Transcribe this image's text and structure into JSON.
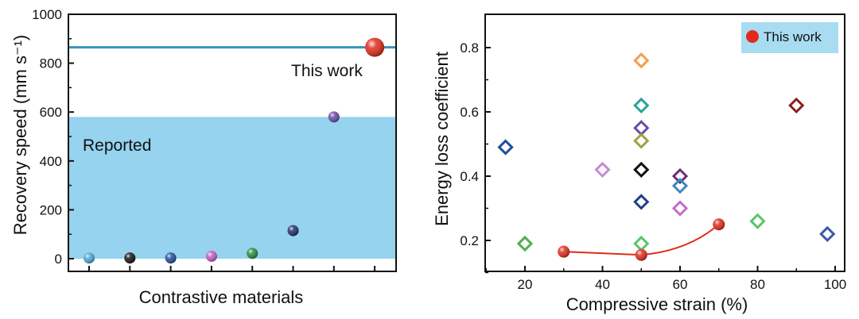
{
  "chart_data": [
    {
      "type": "scatter",
      "xlabel": "Contrastive materials",
      "ylabel": "Recovery speed (mm s⁻¹)",
      "ylim": [
        -50,
        1000
      ],
      "yticks": [
        "0",
        "200",
        "400",
        "600",
        "800",
        "1000"
      ],
      "grid": false,
      "reported_band": {
        "label": "Reported",
        "from": 0,
        "to": 580,
        "color": "#95d3ee"
      },
      "this_work_line": {
        "value": 865,
        "color": "#3a93b8"
      },
      "points": [
        {
          "x": 1,
          "y": 3,
          "color": "#4aa8d8"
        },
        {
          "x": 2,
          "y": 3,
          "color": "#111111"
        },
        {
          "x": 3,
          "y": 3,
          "color": "#1f4e9a"
        },
        {
          "x": 4,
          "y": 10,
          "color": "#c45bc2"
        },
        {
          "x": 5,
          "y": 22,
          "color": "#2a8a3a"
        },
        {
          "x": 6,
          "y": 115,
          "color": "#1f2a6e"
        },
        {
          "x": 7,
          "y": 580,
          "color": "#6a4aa8"
        }
      ],
      "this_work_point": {
        "x": 8,
        "y": 865,
        "color": "#e12a1a",
        "label": "This work"
      }
    },
    {
      "type": "scatter",
      "xlabel": "Compressive strain (%)",
      "ylabel": "Energy loss coefficient",
      "xlim": [
        10,
        100
      ],
      "ylim": [
        0.1,
        0.9
      ],
      "xticks": [
        "20",
        "40",
        "60",
        "80",
        "100"
      ],
      "yticks": [
        "0.2",
        "0.4",
        "0.6",
        "0.8"
      ],
      "grid": false,
      "legend": {
        "position": "top-right",
        "label": "This work",
        "color": "#e12a1a",
        "background": "#a8dcf1"
      },
      "reported": [
        {
          "x": 15,
          "y": 0.49,
          "color": "#1f4e9a"
        },
        {
          "x": 20,
          "y": 0.19,
          "color": "#4caf50"
        },
        {
          "x": 40,
          "y": 0.42,
          "color": "#c58bd6"
        },
        {
          "x": 50,
          "y": 0.76,
          "color": "#f2a04a"
        },
        {
          "x": 50,
          "y": 0.62,
          "color": "#2aa39a"
        },
        {
          "x": 50,
          "y": 0.55,
          "color": "#6a4aa8"
        },
        {
          "x": 50,
          "y": 0.51,
          "color": "#a5a043"
        },
        {
          "x": 50,
          "y": 0.42,
          "color": "#111111"
        },
        {
          "x": 50,
          "y": 0.32,
          "color": "#1f3f8a"
        },
        {
          "x": 50,
          "y": 0.19,
          "color": "#5cc46a"
        },
        {
          "x": 60,
          "y": 0.4,
          "color": "#6b2d74"
        },
        {
          "x": 60,
          "y": 0.37,
          "color": "#3a8ac0"
        },
        {
          "x": 60,
          "y": 0.3,
          "color": "#c56bc8"
        },
        {
          "x": 80,
          "y": 0.26,
          "color": "#5cc46a"
        },
        {
          "x": 90,
          "y": 0.62,
          "color": "#8b1f1f"
        },
        {
          "x": 98,
          "y": 0.22,
          "color": "#3a5aa6"
        }
      ],
      "series": [
        {
          "name": "This work",
          "color": "#e12a1a",
          "x": [
            30,
            50,
            70
          ],
          "y": [
            0.165,
            0.155,
            0.25
          ]
        }
      ]
    }
  ]
}
